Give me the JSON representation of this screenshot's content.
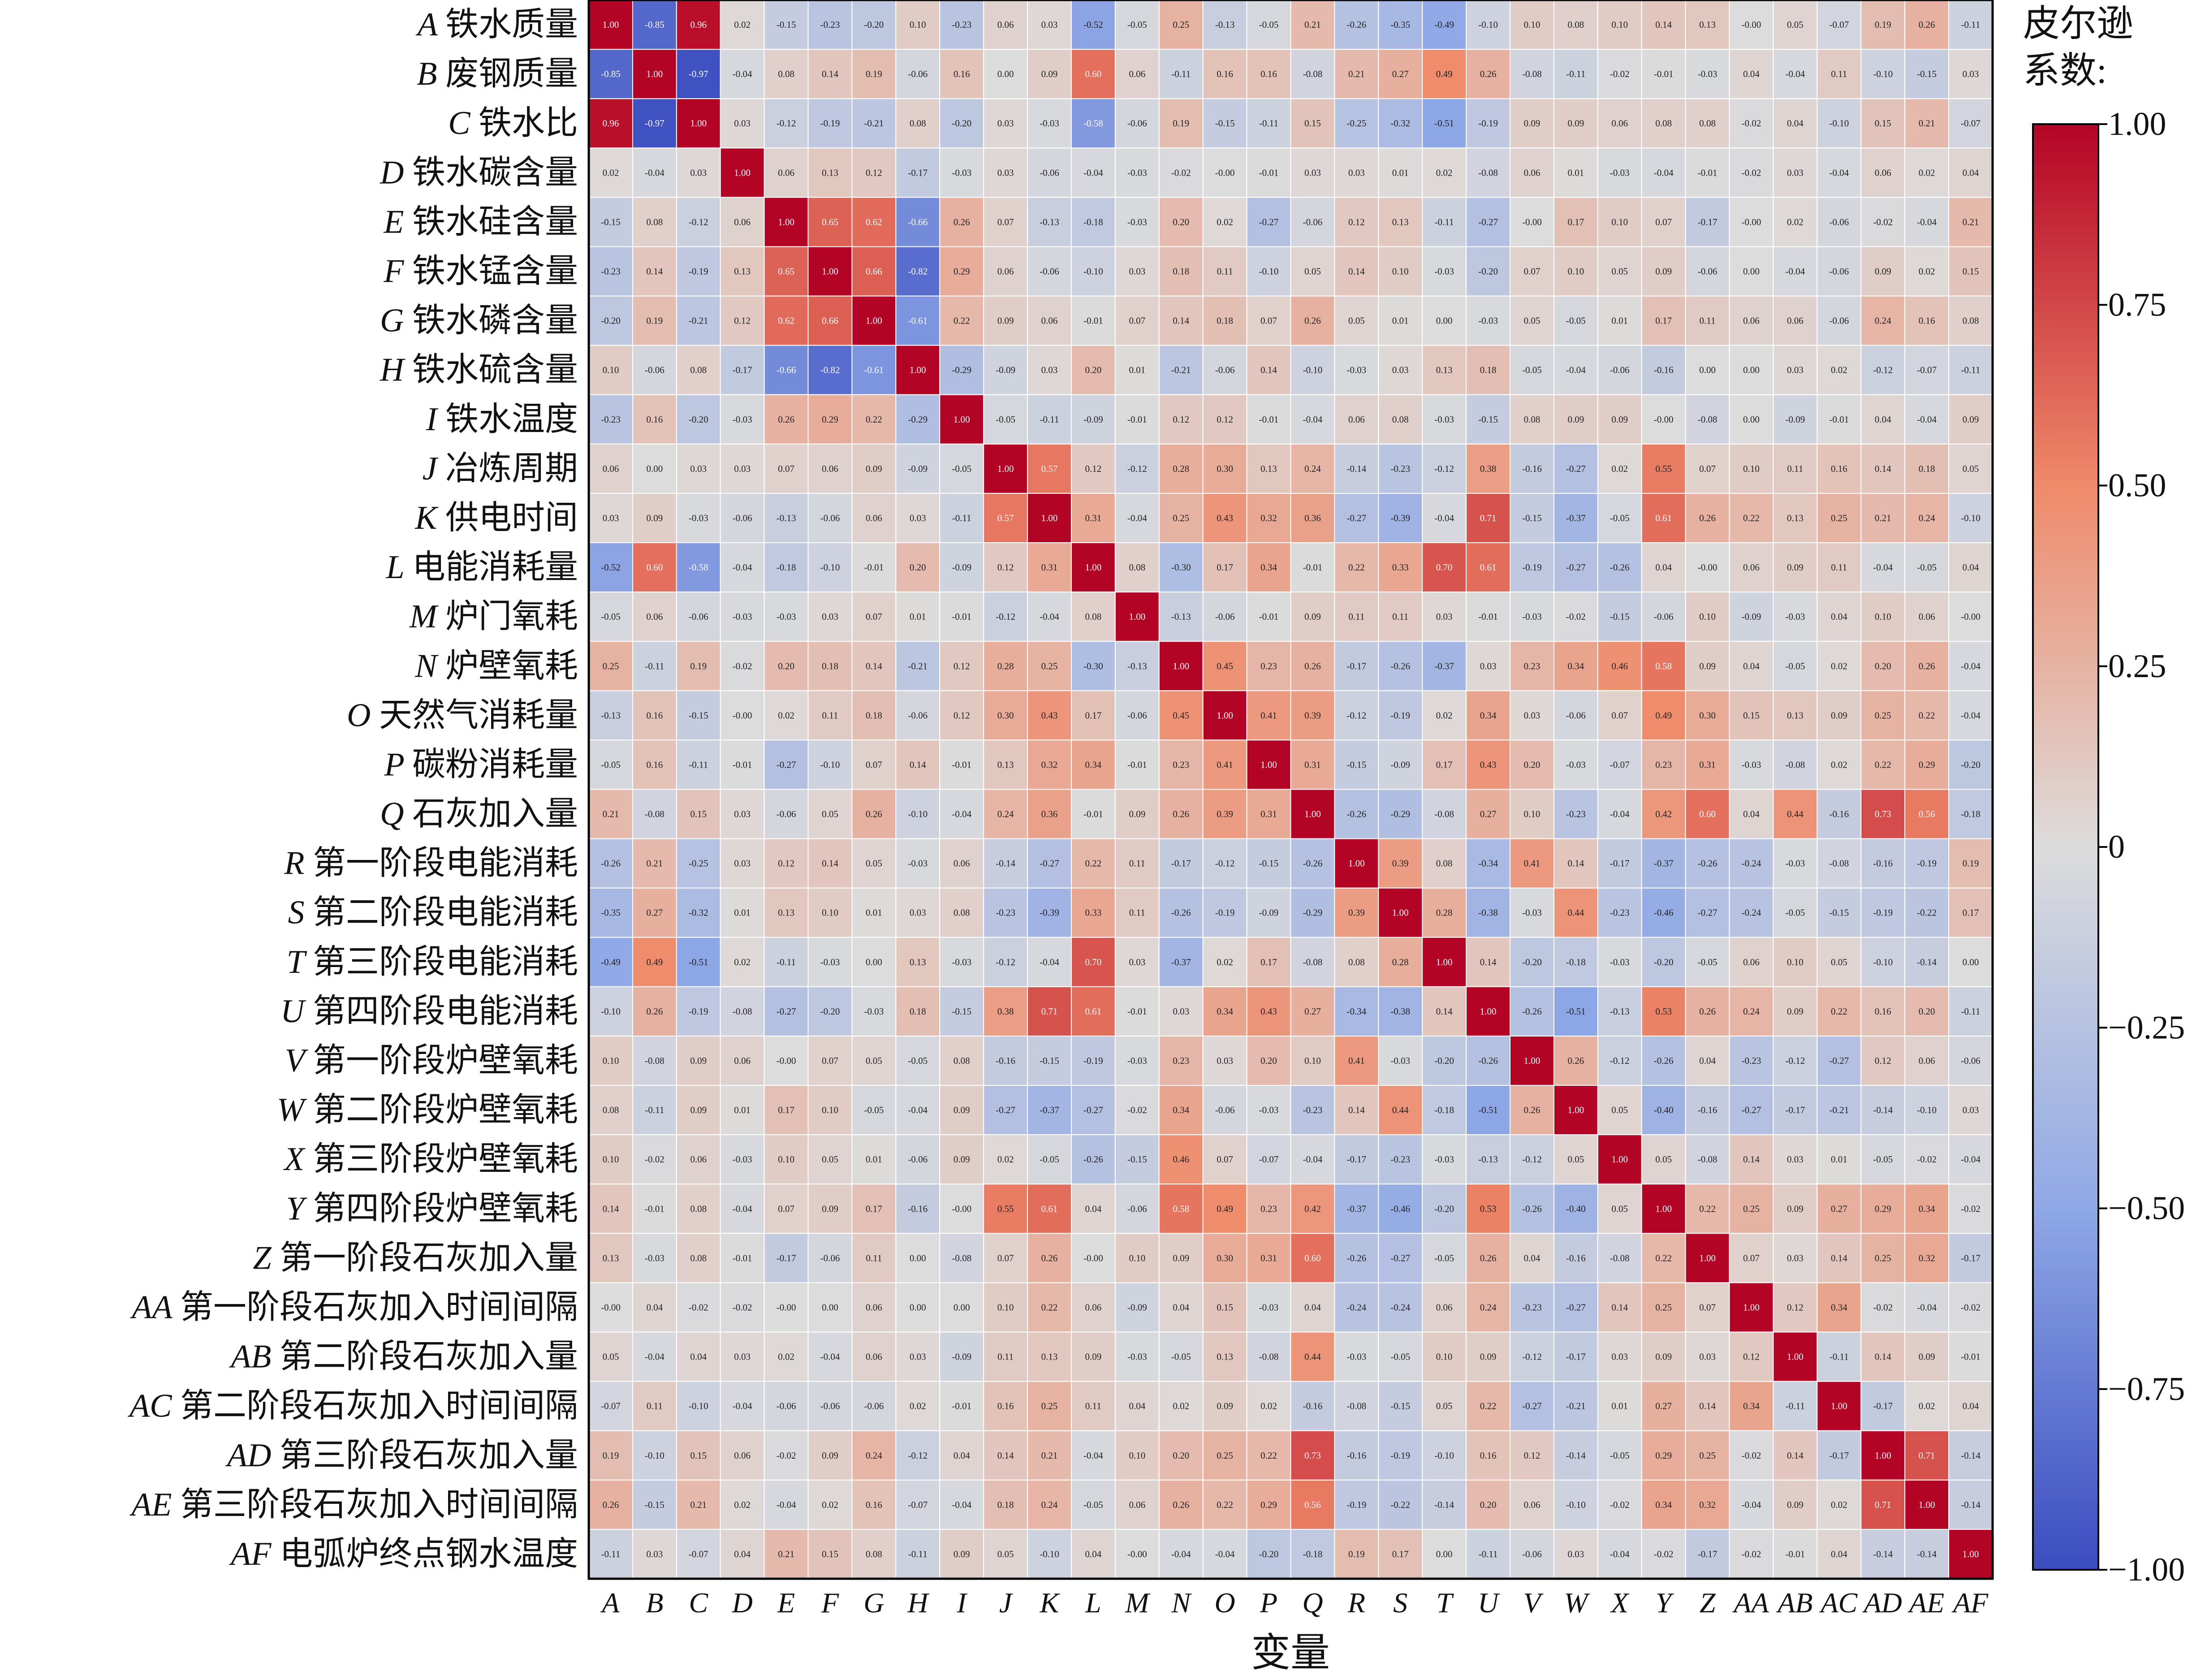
{
  "chart_data": {
    "type": "heatmap",
    "xlabel": "变量",
    "colorbar_label": [
      "皮尔逊",
      "系数:"
    ],
    "colorbar_ticks": [
      "1.00",
      "0.75",
      "0.50",
      "0.25",
      "0",
      "−0.25",
      "−0.50",
      "−0.75",
      "−1.00"
    ],
    "vmin": -1.0,
    "vmax": 1.0,
    "colormap": [
      "#3b4cc0",
      "#dddcdc",
      "#b40426"
    ],
    "codes": [
      "A",
      "B",
      "C",
      "D",
      "E",
      "F",
      "G",
      "H",
      "I",
      "J",
      "K",
      "L",
      "M",
      "N",
      "O",
      "P",
      "Q",
      "R",
      "S",
      "T",
      "U",
      "V",
      "W",
      "X",
      "Y",
      "Z",
      "AA",
      "AB",
      "AC",
      "AD",
      "AE",
      "AF"
    ],
    "row_names": [
      "铁水质量",
      "废钢质量",
      "铁水比",
      "铁水碳含量",
      "铁水硅含量",
      "铁水锰含量",
      "铁水磷含量",
      "铁水硫含量",
      "铁水温度",
      "冶炼周期",
      "供电时间",
      "电能消耗量",
      "炉门氧耗",
      "炉壁氧耗",
      "天然气消耗量",
      "碳粉消耗量",
      "石灰加入量",
      "第一阶段电能消耗",
      "第二阶段电能消耗",
      "第三阶段电能消耗",
      "第四阶段电能消耗",
      "第一阶段炉壁氧耗",
      "第二阶段炉壁氧耗",
      "第三阶段炉壁氧耗",
      "第四阶段炉壁氧耗",
      "第一阶段石灰加入量",
      "第一阶段石灰加入时间间隔",
      "第二阶段石灰加入量",
      "第二阶段石灰加入时间间隔",
      "第三阶段石灰加入量",
      "第三阶段石灰加入时间间隔",
      "电弧炉终点钢水温度"
    ],
    "values": [
      [
        1.0,
        -0.85,
        0.96,
        0.02,
        -0.15,
        -0.23,
        -0.2,
        0.1,
        -0.23,
        0.06,
        0.03,
        -0.52,
        -0.05,
        0.25,
        -0.13,
        -0.05,
        0.21,
        -0.26,
        -0.35,
        -0.49,
        -0.1,
        0.1,
        0.08,
        0.1,
        0.14,
        0.13,
        -0.0,
        0.05,
        -0.07,
        0.19,
        0.26,
        -0.11
      ],
      [
        -0.85,
        1.0,
        -0.97,
        -0.04,
        0.08,
        0.14,
        0.19,
        -0.06,
        0.16,
        0.0,
        0.09,
        0.6,
        0.06,
        -0.11,
        0.16,
        0.16,
        -0.08,
        0.21,
        0.27,
        0.49,
        0.26,
        -0.08,
        -0.11,
        -0.02,
        -0.01,
        -0.03,
        0.04,
        -0.04,
        0.11,
        -0.1,
        -0.15,
        0.03
      ],
      [
        0.96,
        -0.97,
        1.0,
        0.03,
        -0.12,
        -0.19,
        -0.21,
        0.08,
        -0.2,
        0.03,
        -0.03,
        -0.58,
        -0.06,
        0.19,
        -0.15,
        -0.11,
        0.15,
        -0.25,
        -0.32,
        -0.51,
        -0.19,
        0.09,
        0.09,
        0.06,
        0.08,
        0.08,
        -0.02,
        0.04,
        -0.1,
        0.15,
        0.21,
        -0.07
      ],
      [
        0.02,
        -0.04,
        0.03,
        1.0,
        0.06,
        0.13,
        0.12,
        -0.17,
        -0.03,
        0.03,
        -0.06,
        -0.04,
        -0.03,
        -0.02,
        -0.0,
        -0.01,
        0.03,
        0.03,
        0.01,
        0.02,
        -0.08,
        0.06,
        0.01,
        -0.03,
        -0.04,
        -0.01,
        -0.02,
        0.03,
        -0.04,
        0.06,
        0.02,
        0.04
      ],
      [
        -0.15,
        0.08,
        -0.12,
        0.06,
        1.0,
        0.65,
        0.62,
        -0.66,
        0.26,
        0.07,
        -0.13,
        -0.18,
        -0.03,
        0.2,
        0.02,
        -0.27,
        -0.06,
        0.12,
        0.13,
        -0.11,
        -0.27,
        -0.0,
        0.17,
        0.1,
        0.07,
        -0.17,
        -0.0,
        0.02,
        -0.06,
        -0.02,
        -0.04,
        0.21
      ],
      [
        -0.23,
        0.14,
        -0.19,
        0.13,
        0.65,
        1.0,
        0.66,
        -0.82,
        0.29,
        0.06,
        -0.06,
        -0.1,
        0.03,
        0.18,
        0.11,
        -0.1,
        0.05,
        0.14,
        0.1,
        -0.03,
        -0.2,
        0.07,
        0.1,
        0.05,
        0.09,
        -0.06,
        0.0,
        -0.04,
        -0.06,
        0.09,
        0.02,
        0.15
      ],
      [
        -0.2,
        0.19,
        -0.21,
        0.12,
        0.62,
        0.66,
        1.0,
        -0.61,
        0.22,
        0.09,
        0.06,
        -0.01,
        0.07,
        0.14,
        0.18,
        0.07,
        0.26,
        0.05,
        0.01,
        0.0,
        -0.03,
        0.05,
        -0.05,
        0.01,
        0.17,
        0.11,
        0.06,
        0.06,
        -0.06,
        0.24,
        0.16,
        0.08
      ],
      [
        0.1,
        -0.06,
        0.08,
        -0.17,
        -0.66,
        -0.82,
        -0.61,
        1.0,
        -0.29,
        -0.09,
        0.03,
        0.2,
        0.01,
        -0.21,
        -0.06,
        0.14,
        -0.1,
        -0.03,
        0.03,
        0.13,
        0.18,
        -0.05,
        -0.04,
        -0.06,
        -0.16,
        0.0,
        0.0,
        0.03,
        0.02,
        -0.12,
        -0.07,
        -0.11
      ],
      [
        -0.23,
        0.16,
        -0.2,
        -0.03,
        0.26,
        0.29,
        0.22,
        -0.29,
        1.0,
        -0.05,
        -0.11,
        -0.09,
        -0.01,
        0.12,
        0.12,
        -0.01,
        -0.04,
        0.06,
        0.08,
        -0.03,
        -0.15,
        0.08,
        0.09,
        0.09,
        -0.0,
        -0.08,
        0.0,
        -0.09,
        -0.01,
        0.04,
        -0.04,
        0.09
      ],
      [
        0.06,
        0.0,
        0.03,
        0.03,
        0.07,
        0.06,
        0.09,
        -0.09,
        -0.05,
        1.0,
        0.57,
        0.12,
        -0.12,
        0.28,
        0.3,
        0.13,
        0.24,
        -0.14,
        -0.23,
        -0.12,
        0.38,
        -0.16,
        -0.27,
        0.02,
        0.55,
        0.07,
        0.1,
        0.11,
        0.16,
        0.14,
        0.18,
        0.05
      ],
      [
        0.03,
        0.09,
        -0.03,
        -0.06,
        -0.13,
        -0.06,
        0.06,
        0.03,
        -0.11,
        0.57,
        1.0,
        0.31,
        -0.04,
        0.25,
        0.43,
        0.32,
        0.36,
        -0.27,
        -0.39,
        -0.04,
        0.71,
        -0.15,
        -0.37,
        -0.05,
        0.61,
        0.26,
        0.22,
        0.13,
        0.25,
        0.21,
        0.24,
        -0.1
      ],
      [
        -0.52,
        0.6,
        -0.58,
        -0.04,
        -0.18,
        -0.1,
        -0.01,
        0.2,
        -0.09,
        0.12,
        0.31,
        1.0,
        0.08,
        -0.3,
        0.17,
        0.34,
        -0.01,
        0.22,
        0.33,
        0.7,
        0.61,
        -0.19,
        -0.27,
        -0.26,
        0.04,
        -0.0,
        0.06,
        0.09,
        0.11,
        -0.04,
        -0.05,
        0.04
      ],
      [
        -0.05,
        0.06,
        -0.06,
        -0.03,
        -0.03,
        0.03,
        0.07,
        0.01,
        -0.01,
        -0.12,
        -0.04,
        0.08,
        1.0,
        -0.13,
        -0.06,
        -0.01,
        0.09,
        0.11,
        0.11,
        0.03,
        -0.01,
        -0.03,
        -0.02,
        -0.15,
        -0.06,
        0.1,
        -0.09,
        -0.03,
        0.04,
        0.1,
        0.06,
        -0.0
      ],
      [
        0.25,
        -0.11,
        0.19,
        -0.02,
        0.2,
        0.18,
        0.14,
        -0.21,
        0.12,
        0.28,
        0.25,
        -0.3,
        -0.13,
        1.0,
        0.45,
        0.23,
        0.26,
        -0.17,
        -0.26,
        -0.37,
        0.03,
        0.23,
        0.34,
        0.46,
        0.58,
        0.09,
        0.04,
        -0.05,
        0.02,
        0.2,
        0.26,
        -0.04
      ],
      [
        -0.13,
        0.16,
        -0.15,
        -0.0,
        0.02,
        0.11,
        0.18,
        -0.06,
        0.12,
        0.3,
        0.43,
        0.17,
        -0.06,
        0.45,
        1.0,
        0.41,
        0.39,
        -0.12,
        -0.19,
        0.02,
        0.34,
        0.03,
        -0.06,
        0.07,
        0.49,
        0.3,
        0.15,
        0.13,
        0.09,
        0.25,
        0.22,
        -0.04
      ],
      [
        -0.05,
        0.16,
        -0.11,
        -0.01,
        -0.27,
        -0.1,
        0.07,
        0.14,
        -0.01,
        0.13,
        0.32,
        0.34,
        -0.01,
        0.23,
        0.41,
        1.0,
        0.31,
        -0.15,
        -0.09,
        0.17,
        0.43,
        0.2,
        -0.03,
        -0.07,
        0.23,
        0.31,
        -0.03,
        -0.08,
        0.02,
        0.22,
        0.29,
        -0.2
      ],
      [
        0.21,
        -0.08,
        0.15,
        0.03,
        -0.06,
        0.05,
        0.26,
        -0.1,
        -0.04,
        0.24,
        0.36,
        -0.01,
        0.09,
        0.26,
        0.39,
        0.31,
        1.0,
        -0.26,
        -0.29,
        -0.08,
        0.27,
        0.1,
        -0.23,
        -0.04,
        0.42,
        0.6,
        0.04,
        0.44,
        -0.16,
        0.73,
        0.56,
        -0.18
      ],
      [
        -0.26,
        0.21,
        -0.25,
        0.03,
        0.12,
        0.14,
        0.05,
        -0.03,
        0.06,
        -0.14,
        -0.27,
        0.22,
        0.11,
        -0.17,
        -0.12,
        -0.15,
        -0.26,
        1.0,
        0.39,
        0.08,
        -0.34,
        0.41,
        0.14,
        -0.17,
        -0.37,
        -0.26,
        -0.24,
        -0.03,
        -0.08,
        -0.16,
        -0.19,
        0.19
      ],
      [
        -0.35,
        0.27,
        -0.32,
        0.01,
        0.13,
        0.1,
        0.01,
        0.03,
        0.08,
        -0.23,
        -0.39,
        0.33,
        0.11,
        -0.26,
        -0.19,
        -0.09,
        -0.29,
        0.39,
        1.0,
        0.28,
        -0.38,
        -0.03,
        0.44,
        -0.23,
        -0.46,
        -0.27,
        -0.24,
        -0.05,
        -0.15,
        -0.19,
        -0.22,
        0.17
      ],
      [
        -0.49,
        0.49,
        -0.51,
        0.02,
        -0.11,
        -0.03,
        0.0,
        0.13,
        -0.03,
        -0.12,
        -0.04,
        0.7,
        0.03,
        -0.37,
        0.02,
        0.17,
        -0.08,
        0.08,
        0.28,
        1.0,
        0.14,
        -0.2,
        -0.18,
        -0.03,
        -0.2,
        -0.05,
        0.06,
        0.1,
        0.05,
        -0.1,
        -0.14,
        0.0
      ],
      [
        -0.1,
        0.26,
        -0.19,
        -0.08,
        -0.27,
        -0.2,
        -0.03,
        0.18,
        -0.15,
        0.38,
        0.71,
        0.61,
        -0.01,
        0.03,
        0.34,
        0.43,
        0.27,
        -0.34,
        -0.38,
        0.14,
        1.0,
        -0.26,
        -0.51,
        -0.13,
        0.53,
        0.26,
        0.24,
        0.09,
        0.22,
        0.16,
        0.2,
        -0.11
      ],
      [
        0.1,
        -0.08,
        0.09,
        0.06,
        -0.0,
        0.07,
        0.05,
        -0.05,
        0.08,
        -0.16,
        -0.15,
        -0.19,
        -0.03,
        0.23,
        0.03,
        0.2,
        0.1,
        0.41,
        -0.03,
        -0.2,
        -0.26,
        1.0,
        0.26,
        -0.12,
        -0.26,
        0.04,
        -0.23,
        -0.12,
        -0.27,
        0.12,
        0.06,
        -0.06
      ],
      [
        0.08,
        -0.11,
        0.09,
        0.01,
        0.17,
        0.1,
        -0.05,
        -0.04,
        0.09,
        -0.27,
        -0.37,
        -0.27,
        -0.02,
        0.34,
        -0.06,
        -0.03,
        -0.23,
        0.14,
        0.44,
        -0.18,
        -0.51,
        0.26,
        1.0,
        0.05,
        -0.4,
        -0.16,
        -0.27,
        -0.17,
        -0.21,
        -0.14,
        -0.1,
        0.03
      ],
      [
        0.1,
        -0.02,
        0.06,
        -0.03,
        0.1,
        0.05,
        0.01,
        -0.06,
        0.09,
        0.02,
        -0.05,
        -0.26,
        -0.15,
        0.46,
        0.07,
        -0.07,
        -0.04,
        -0.17,
        -0.23,
        -0.03,
        -0.13,
        -0.12,
        0.05,
        1.0,
        0.05,
        -0.08,
        0.14,
        0.03,
        0.01,
        -0.05,
        -0.02,
        -0.04
      ],
      [
        0.14,
        -0.01,
        0.08,
        -0.04,
        0.07,
        0.09,
        0.17,
        -0.16,
        -0.0,
        0.55,
        0.61,
        0.04,
        -0.06,
        0.58,
        0.49,
        0.23,
        0.42,
        -0.37,
        -0.46,
        -0.2,
        0.53,
        -0.26,
        -0.4,
        0.05,
        1.0,
        0.22,
        0.25,
        0.09,
        0.27,
        0.29,
        0.34,
        -0.02
      ],
      [
        0.13,
        -0.03,
        0.08,
        -0.01,
        -0.17,
        -0.06,
        0.11,
        0.0,
        -0.08,
        0.07,
        0.26,
        -0.0,
        0.1,
        0.09,
        0.3,
        0.31,
        0.6,
        -0.26,
        -0.27,
        -0.05,
        0.26,
        0.04,
        -0.16,
        -0.08,
        0.22,
        1.0,
        0.07,
        0.03,
        0.14,
        0.25,
        0.32,
        -0.17
      ],
      [
        -0.0,
        0.04,
        -0.02,
        -0.02,
        -0.0,
        0.0,
        0.06,
        0.0,
        0.0,
        0.1,
        0.22,
        0.06,
        -0.09,
        0.04,
        0.15,
        -0.03,
        0.04,
        -0.24,
        -0.24,
        0.06,
        0.24,
        -0.23,
        -0.27,
        0.14,
        0.25,
        0.07,
        1.0,
        0.12,
        0.34,
        -0.02,
        -0.04,
        -0.02
      ],
      [
        0.05,
        -0.04,
        0.04,
        0.03,
        0.02,
        -0.04,
        0.06,
        0.03,
        -0.09,
        0.11,
        0.13,
        0.09,
        -0.03,
        -0.05,
        0.13,
        -0.08,
        0.44,
        -0.03,
        -0.05,
        0.1,
        0.09,
        -0.12,
        -0.17,
        0.03,
        0.09,
        0.03,
        0.12,
        1.0,
        -0.11,
        0.14,
        0.09,
        -0.01
      ],
      [
        -0.07,
        0.11,
        -0.1,
        -0.04,
        -0.06,
        -0.06,
        -0.06,
        0.02,
        -0.01,
        0.16,
        0.25,
        0.11,
        0.04,
        0.02,
        0.09,
        0.02,
        -0.16,
        -0.08,
        -0.15,
        0.05,
        0.22,
        -0.27,
        -0.21,
        0.01,
        0.27,
        0.14,
        0.34,
        -0.11,
        1.0,
        -0.17,
        0.02,
        0.04
      ],
      [
        0.19,
        -0.1,
        0.15,
        0.06,
        -0.02,
        0.09,
        0.24,
        -0.12,
        0.04,
        0.14,
        0.21,
        -0.04,
        0.1,
        0.2,
        0.25,
        0.22,
        0.73,
        -0.16,
        -0.19,
        -0.1,
        0.16,
        0.12,
        -0.14,
        -0.05,
        0.29,
        0.25,
        -0.02,
        0.14,
        -0.17,
        1.0,
        0.71,
        -0.14
      ],
      [
        0.26,
        -0.15,
        0.21,
        0.02,
        -0.04,
        0.02,
        0.16,
        -0.07,
        -0.04,
        0.18,
        0.24,
        -0.05,
        0.06,
        0.26,
        0.22,
        0.29,
        0.56,
        -0.19,
        -0.22,
        -0.14,
        0.2,
        0.06,
        -0.1,
        -0.02,
        0.34,
        0.32,
        -0.04,
        0.09,
        0.02,
        0.71,
        1.0,
        -0.14
      ],
      [
        -0.11,
        0.03,
        -0.07,
        0.04,
        0.21,
        0.15,
        0.08,
        -0.11,
        0.09,
        0.05,
        -0.1,
        0.04,
        -0.0,
        -0.04,
        -0.04,
        -0.2,
        -0.18,
        0.19,
        0.17,
        0.0,
        -0.11,
        -0.06,
        0.03,
        -0.04,
        -0.02,
        -0.17,
        -0.02,
        -0.01,
        0.04,
        -0.14,
        -0.14,
        1.0
      ]
    ]
  }
}
